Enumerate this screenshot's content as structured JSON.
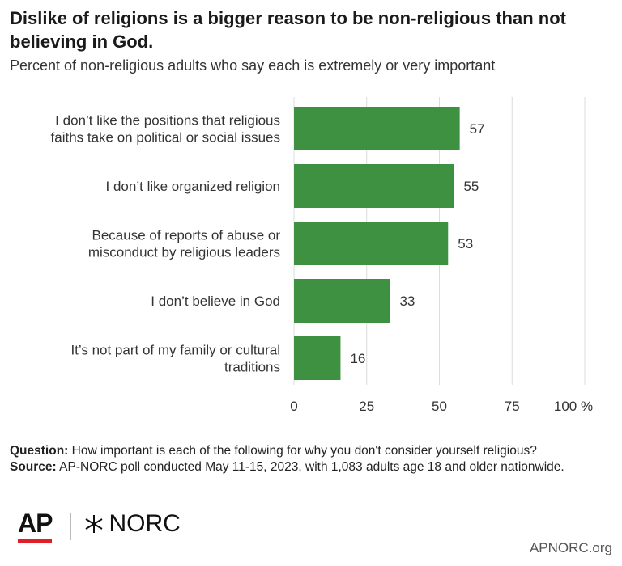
{
  "title": "Dislike of religions is a bigger reason to be non-religious than not believing in God.",
  "subtitle": "Percent of non-religious adults who say each is extremely or very important",
  "colors": {
    "bar": "#3e9140",
    "grid": "#dcdcdc",
    "ap_red": "#e21e26"
  },
  "chart_data": {
    "type": "bar",
    "orientation": "horizontal",
    "categories": [
      [
        "I don’t like the positions that religious",
        "faiths take on political or social issues"
      ],
      [
        "I don’t like organized religion"
      ],
      [
        "Because of reports of abuse or",
        "misconduct by religious leaders"
      ],
      [
        "I don’t believe in God"
      ],
      [
        "It’s not part of my family or cultural",
        "traditions"
      ]
    ],
    "values": [
      57,
      55,
      53,
      33,
      16
    ],
    "xlim": [
      0,
      100
    ],
    "x_ticks": [
      0,
      25,
      50,
      75,
      100
    ],
    "x_tick_labels": [
      "0",
      "25",
      "50",
      "75",
      "100 %"
    ],
    "grid": true
  },
  "footer": {
    "question_label": "Question:",
    "question_text": " How important is each of the following for why you don't consider yourself religious?",
    "source_label": "Source:",
    "source_text": " AP-NORC poll conducted May 11-15, 2023, with 1,083 adults age 18 and older nationwide."
  },
  "logos": {
    "ap": "AP",
    "norc": "NORC",
    "norc_mark_icon": "star-cross-icon"
  },
  "site": "APNORC.org"
}
